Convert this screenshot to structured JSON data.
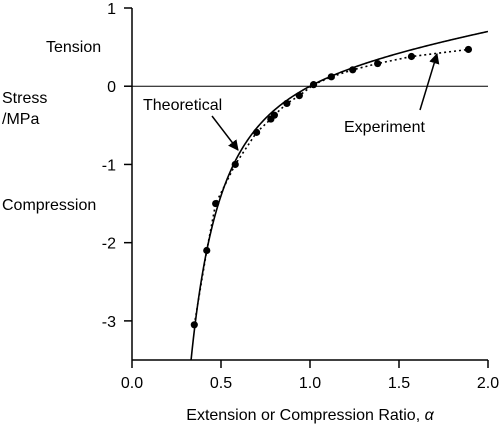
{
  "chart_data": {
    "type": "scatter",
    "title": "",
    "xlabel": "Extension or Compression Ratio, ",
    "xlabel_symbol": "α",
    "ylabel": "Stress\n/MPa",
    "xlim": [
      0,
      2
    ],
    "ylim": [
      -3.5,
      1
    ],
    "x_ticks": [
      "0.0",
      "0.5",
      "1.0",
      "1.5",
      "2.0"
    ],
    "x_tick_values": [
      0,
      0.5,
      1,
      1.5,
      2
    ],
    "y_ticks": [
      "1",
      "0",
      "-1",
      "-2",
      "-3"
    ],
    "y_tick_values": [
      1,
      0,
      -1,
      -2,
      -3
    ],
    "zero_line": true,
    "region_labels": {
      "tension": "Tension",
      "compression": "Compression"
    },
    "series": [
      {
        "name": "Theoretical",
        "style": "solid",
        "shear_modulus_mpa": 0.4,
        "x_range": [
          0.33,
          2.0
        ]
      },
      {
        "name": "Experiment",
        "style": "dotted",
        "markers": true,
        "x": [
          0.35,
          0.42,
          0.47,
          0.58,
          0.7,
          0.78,
          0.8,
          0.87,
          0.94,
          1.02,
          1.12,
          1.24,
          1.38,
          1.57,
          1.89
        ],
        "y": [
          -3.05,
          -2.1,
          -1.5,
          -1.0,
          -0.59,
          -0.42,
          -0.37,
          -0.22,
          -0.12,
          0.02,
          0.12,
          0.21,
          0.29,
          0.38,
          0.47
        ]
      }
    ],
    "annotations": [
      {
        "text": "Theoretical",
        "points_to_series": "Theoretical",
        "at_x": 0.6
      },
      {
        "text": "Experiment",
        "points_to_series": "Experiment",
        "at_x": 1.72
      }
    ]
  }
}
